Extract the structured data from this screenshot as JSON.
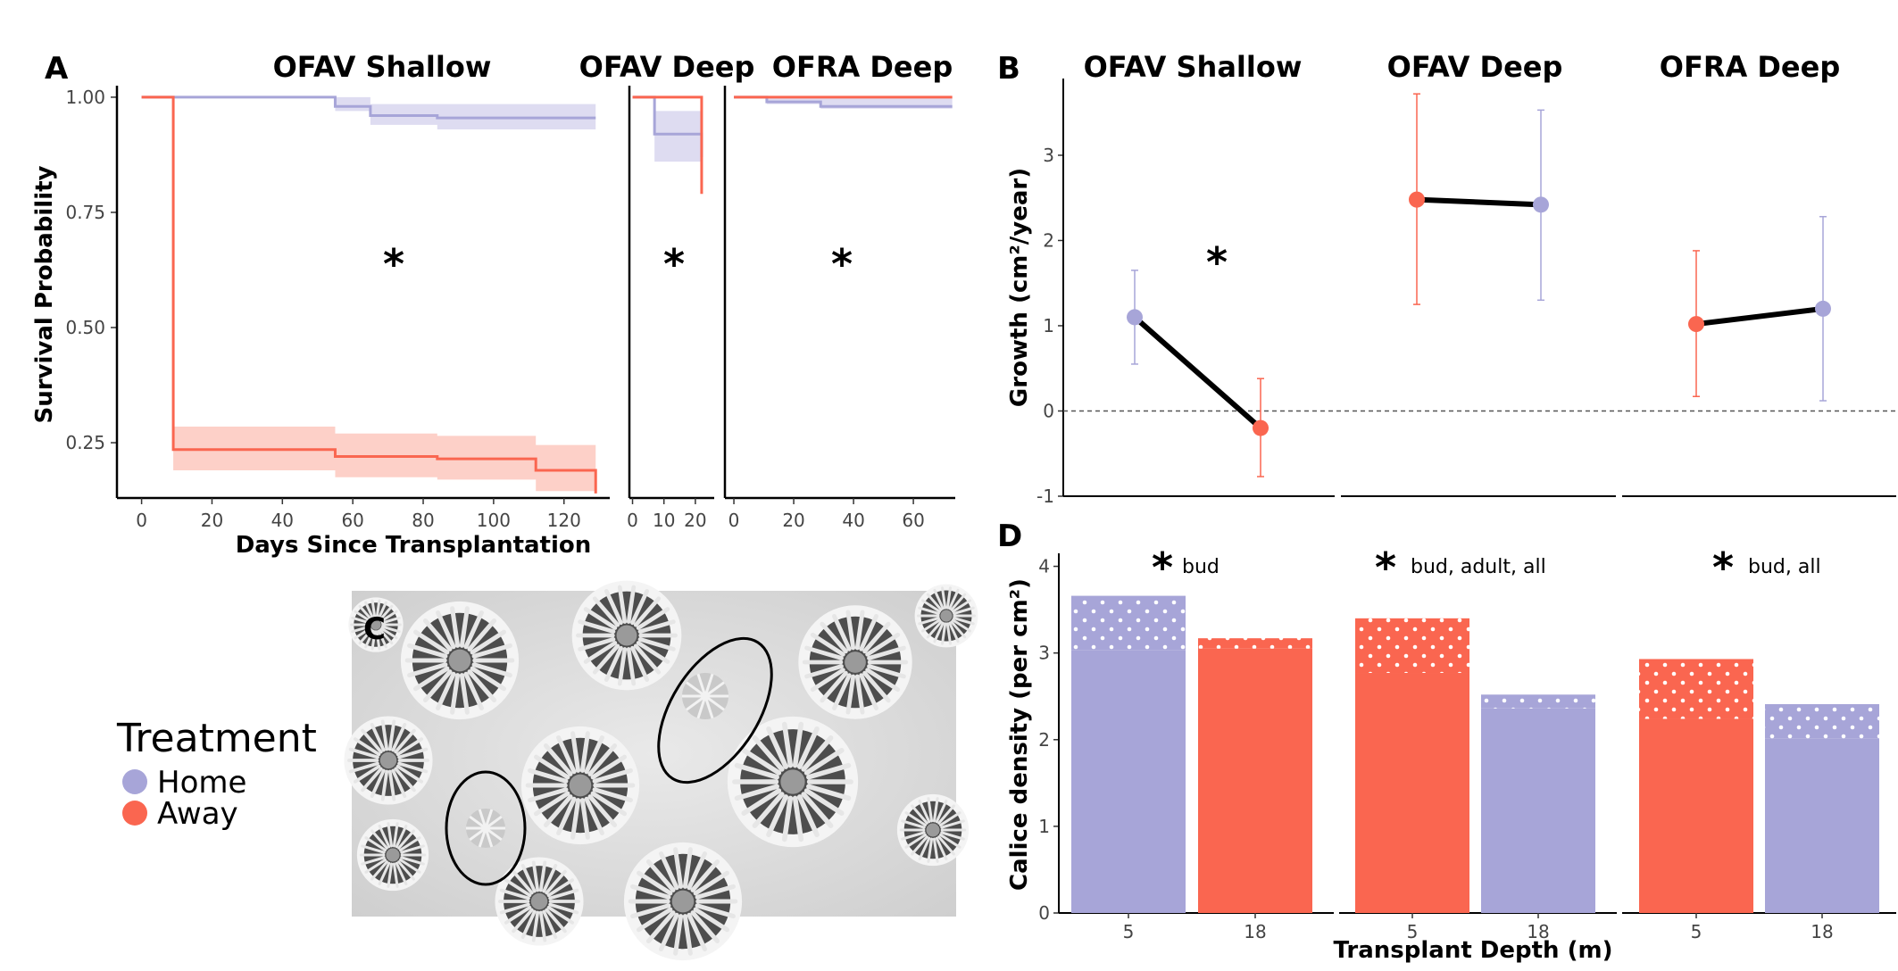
{
  "colors": {
    "home": "#a7a5d8",
    "away": "#fa6650",
    "home_band": "#dedcf1",
    "away_band": "#fdd0c8"
  },
  "legend": {
    "title": "Treatment",
    "items": [
      {
        "label": "Home",
        "color": "#a7a5d8"
      },
      {
        "label": "Away",
        "color": "#fa6650"
      }
    ]
  },
  "chart_data": [
    {
      "panel": "A",
      "type": "line",
      "ylabel": "Survival Probability",
      "xlabel": "Days Since Transplantation",
      "yticks": [
        "0.25",
        "0.50",
        "0.75",
        "1.00"
      ],
      "star": "*",
      "facets": [
        {
          "title": "OFAV Shallow",
          "xlim": [
            -7,
            133
          ],
          "xticks": [
            0,
            20,
            40,
            60,
            80,
            100,
            120
          ],
          "series": [
            {
              "name": "Home",
              "x": [
                0,
                55,
                65,
                84,
                129
              ],
              "y": [
                1.0,
                0.98,
                0.96,
                0.955,
                0.955
              ],
              "lower": [
                1.0,
                0.97,
                0.94,
                0.93,
                0.93
              ],
              "upper": [
                1.0,
                1.0,
                0.985,
                0.985,
                0.985
              ]
            },
            {
              "name": "Away",
              "x": [
                0,
                9,
                55,
                84,
                112,
                129
              ],
              "y": [
                1.0,
                0.235,
                0.22,
                0.215,
                0.19,
                0.14
              ],
              "lower": [
                1.0,
                0.19,
                0.175,
                0.17,
                0.145,
                0.14
              ],
              "upper": [
                1.0,
                0.285,
                0.27,
                0.265,
                0.245,
                0.245
              ]
            }
          ]
        },
        {
          "title": "OFAV Deep",
          "xlim": [
            -1,
            26
          ],
          "xticks": [
            0,
            10,
            20
          ],
          "series": [
            {
              "name": "Home",
              "x": [
                0,
                7,
                22
              ],
              "y": [
                1.0,
                0.92,
                0.87
              ],
              "lower": [
                1.0,
                0.86,
                0.86
              ],
              "upper": [
                1.0,
                0.97,
                0.97
              ]
            },
            {
              "name": "Away",
              "x": [
                0,
                22
              ],
              "y": [
                1.0,
                0.79
              ],
              "lower": [
                1.0,
                0.79
              ],
              "upper": [
                1.0,
                0.87
              ]
            }
          ]
        },
        {
          "title": "OFRA Deep",
          "xlim": [
            -3,
            74
          ],
          "xticks": [
            0,
            20,
            40,
            60
          ],
          "series": [
            {
              "name": "Home",
              "x": [
                0,
                11,
                29,
                73
              ],
              "y": [
                1.0,
                0.99,
                0.98,
                0.98
              ],
              "lower": [
                1.0,
                0.985,
                0.975,
                0.95
              ],
              "upper": [
                1.0,
                1.0,
                1.0,
                1.0
              ]
            },
            {
              "name": "Away",
              "x": [
                0,
                73
              ],
              "y": [
                1.0,
                1.0
              ],
              "lower": [
                1.0,
                1.0
              ],
              "upper": [
                1.0,
                1.0
              ]
            }
          ]
        }
      ]
    },
    {
      "panel": "B",
      "type": "scatter",
      "ylabel": "Growth (cm²/year)",
      "ylim": [
        -1,
        3.9
      ],
      "yticks": [
        "-1",
        "0",
        "1",
        "2",
        "3"
      ],
      "facets": [
        {
          "title": "OFAV Shallow",
          "star": "*",
          "points": [
            {
              "treatment": "Home",
              "mean": 1.1,
              "lo": 0.55,
              "hi": 1.65
            },
            {
              "treatment": "Away",
              "mean": -0.2,
              "lo": -0.77,
              "hi": 0.38
            }
          ]
        },
        {
          "title": "OFAV Deep",
          "star": "",
          "points": [
            {
              "treatment": "Away",
              "mean": 2.48,
              "lo": 1.25,
              "hi": 3.72
            },
            {
              "treatment": "Home",
              "mean": 2.42,
              "lo": 1.3,
              "hi": 3.53
            }
          ]
        },
        {
          "title": "OFRA Deep",
          "star": "",
          "points": [
            {
              "treatment": "Away",
              "mean": 1.02,
              "lo": 0.17,
              "hi": 1.88
            },
            {
              "treatment": "Home",
              "mean": 1.2,
              "lo": 0.12,
              "hi": 2.28
            }
          ]
        }
      ]
    },
    {
      "panel": "D",
      "type": "bar",
      "ylabel": "Calice density (per cm²)",
      "xlabel": "Transplant Depth (m)",
      "ylim": [
        0,
        4.15
      ],
      "yticks": [
        "0",
        "1",
        "2",
        "3",
        "4"
      ],
      "facets": [
        {
          "sig": "bud",
          "bars": [
            {
              "category": "5",
              "treatment": "Home",
              "adult": 3.03,
              "bud": 0.63
            },
            {
              "category": "18",
              "treatment": "Away",
              "adult": 3.05,
              "bud": 0.12
            }
          ]
        },
        {
          "sig": "bud, adult, all",
          "bars": [
            {
              "category": "5",
              "treatment": "Away",
              "adult": 2.77,
              "bud": 0.63
            },
            {
              "category": "18",
              "treatment": "Home",
              "adult": 2.36,
              "bud": 0.16
            }
          ]
        },
        {
          "sig": "bud, all",
          "bars": [
            {
              "category": "5",
              "treatment": "Away",
              "adult": 2.24,
              "bud": 0.69
            },
            {
              "category": "18",
              "treatment": "Home",
              "adult": 2.01,
              "bud": 0.4
            }
          ]
        }
      ]
    }
  ],
  "panels": {
    "a": {
      "letter": "A",
      "star": "*"
    },
    "b": {
      "letter": "B",
      "star": "*"
    },
    "c": {
      "letter": "C"
    },
    "d": {
      "letter": "D",
      "star": "*"
    }
  }
}
